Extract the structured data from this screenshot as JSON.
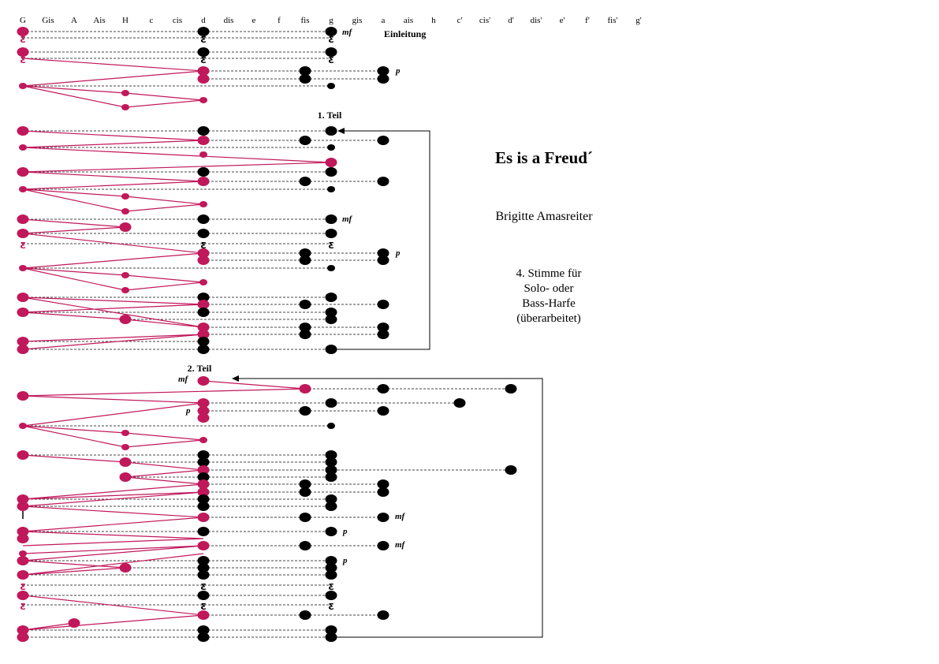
{
  "title": "Es is a Freud´",
  "author": "Brigitte Amasreiter",
  "description": [
    "4. Stimme für",
    "Solo- oder",
    "Bass-Harfe",
    "(überarbeitet)"
  ],
  "note_names": [
    "G",
    "Gis",
    "A",
    "Ais",
    "H",
    "c",
    "cis",
    "d",
    "dis",
    "e",
    "f",
    "fis",
    "g",
    "gis",
    "a",
    "ais",
    "h",
    "c'",
    "cis'",
    "d'",
    "dis'",
    "e'",
    "f'",
    "fis'",
    "g'"
  ],
  "sections": {
    "intro": "Einleitung",
    "part1": "1. Teil",
    "part2": "2. Teil"
  },
  "dynamics": {
    "mf": "mf",
    "p": "p"
  },
  "colors": {
    "pink": "#c0185a",
    "black": "#000000"
  }
}
